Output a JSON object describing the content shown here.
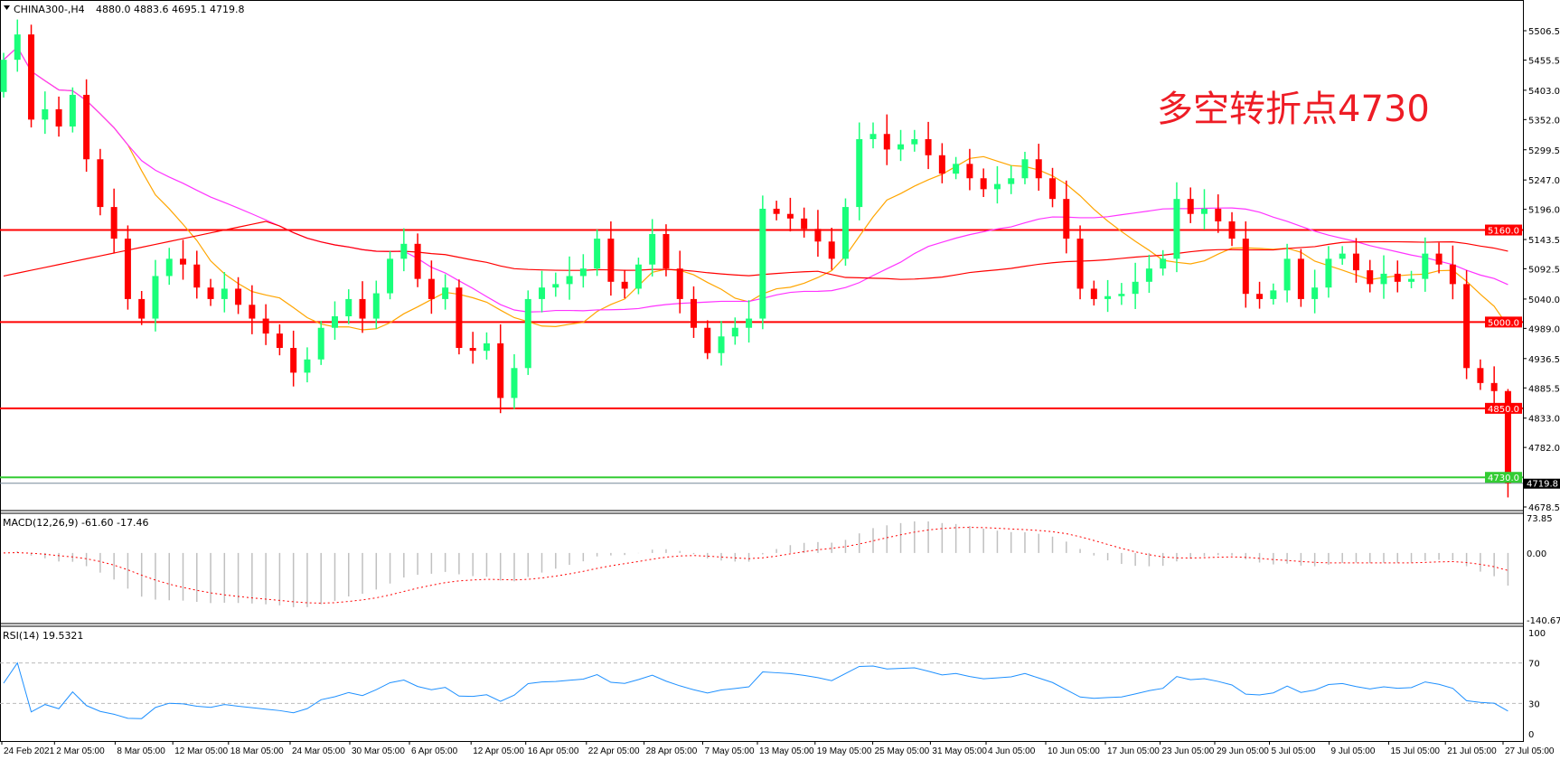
{
  "header": {
    "symbol": "CHINA300-,H4",
    "ohlc_text": "4880.0 4883.6 4695.1 4719.8"
  },
  "annotation": "多空转折点4730",
  "macd_label": "MACD(12,26,9) -61.60 -17.46",
  "rsi_label": "RSI(14) 19.5321",
  "colors": {
    "bull": "#19ff7a",
    "bear": "#ff0000",
    "ma_fast": "#ffa500",
    "ma_mid": "#ff33ff",
    "ma_slow": "#ff0000",
    "rsi": "#1e90ff",
    "macd_signal": "#ff0000",
    "macd_hist": "#c0c0c0",
    "support_green": "#33cc33"
  },
  "chart_data": {
    "type": "candlestick",
    "symbol": "CHINA300",
    "timeframe": "H4",
    "last_candle": {
      "open": 4880.0,
      "high": 4883.6,
      "low": 4695.1,
      "close": 4719.8
    },
    "closes": [
      5456,
      5500,
      5352,
      5370,
      5340,
      5395,
      5283,
      5200,
      5145,
      5040,
      5006,
      5080,
      5110,
      5100,
      5060,
      5040,
      5058,
      5030,
      5006,
      4980,
      4955,
      4912,
      4935,
      4990,
      5010,
      5040,
      5006,
      5050,
      5110,
      5136,
      5075,
      5040,
      5060,
      4955,
      4950,
      4963,
      4868,
      4920,
      5040,
      5060,
      5066,
      5080,
      5093,
      5145,
      5070,
      5058,
      5100,
      5153,
      5093,
      5040,
      4990,
      4946,
      4975,
      4990,
      5006,
      5197,
      5188,
      5180,
      5162,
      5140,
      5110,
      5200,
      5318,
      5327,
      5300,
      5309,
      5318,
      5290,
      5258,
      5275,
      5250,
      5231,
      5240,
      5250,
      5283,
      5250,
      5214,
      5145,
      5058,
      5040,
      5045,
      5049,
      5070,
      5093,
      5110,
      5214,
      5188,
      5197,
      5175,
      5145,
      5049,
      5040,
      5055,
      5110,
      5040,
      5060,
      5110,
      5119,
      5090,
      5066,
      5084,
      5070,
      5075,
      5119,
      5100,
      5066,
      4920,
      4894,
      4880,
      4719.8
    ],
    "price_axis": {
      "range": [
        4678.5,
        5506.5
      ],
      "ticks": [
        "5506.5",
        "5455.5",
        "5403.0",
        "5352.0",
        "5299.5",
        "5247.0",
        "5196.0",
        "5143.5",
        "5092.5",
        "5040.0",
        "4989.0",
        "4936.5",
        "4885.5",
        "4833.0",
        "4782.0",
        "4678.5"
      ]
    },
    "horizontal_lines": [
      {
        "price": 5160.0,
        "label": "5160.0",
        "color": "#ff0000"
      },
      {
        "price": 5000.0,
        "label": "5000.0",
        "color": "#ff0000"
      },
      {
        "price": 4850.0,
        "label": "4850.0",
        "color": "#ff0000"
      },
      {
        "price": 4730.0,
        "label": "4730.0",
        "color": "#33cc33"
      }
    ],
    "current_price": {
      "price": 4719.8,
      "label": "4719.8"
    },
    "macd_axis": {
      "range": [
        -140.67,
        73.85
      ],
      "ticks": [
        "73.85",
        "0.00",
        "-140.67"
      ]
    },
    "rsi_axis": {
      "range": [
        0,
        100
      ],
      "ticks": [
        "100",
        "70",
        "30",
        "0"
      ],
      "levels": [
        70,
        30
      ]
    },
    "time_labels": [
      "24 Feb 2021",
      "2 Mar 05:00",
      "8 Mar 05:00",
      "12 Mar 05:00",
      "18 Mar 05:00",
      "24 Mar 05:00",
      "30 Mar 05:00",
      "6 Apr 05:00",
      "12 Apr 05:00",
      "16 Apr 05:00",
      "22 Apr 05:00",
      "28 Apr 05:00",
      "7 May 05:00",
      "13 May 05:00",
      "19 May 05:00",
      "25 May 05:00",
      "31 May 05:00",
      "4 Jun 05:00",
      "10 Jun 05:00",
      "17 Jun 05:00",
      "23 Jun 05:00",
      "29 Jun 05:00",
      "5 Jul 05:00",
      "9 Jul 05:00",
      "15 Jul 05:00",
      "21 Jul 05:00",
      "27 Jul 05:00"
    ]
  }
}
